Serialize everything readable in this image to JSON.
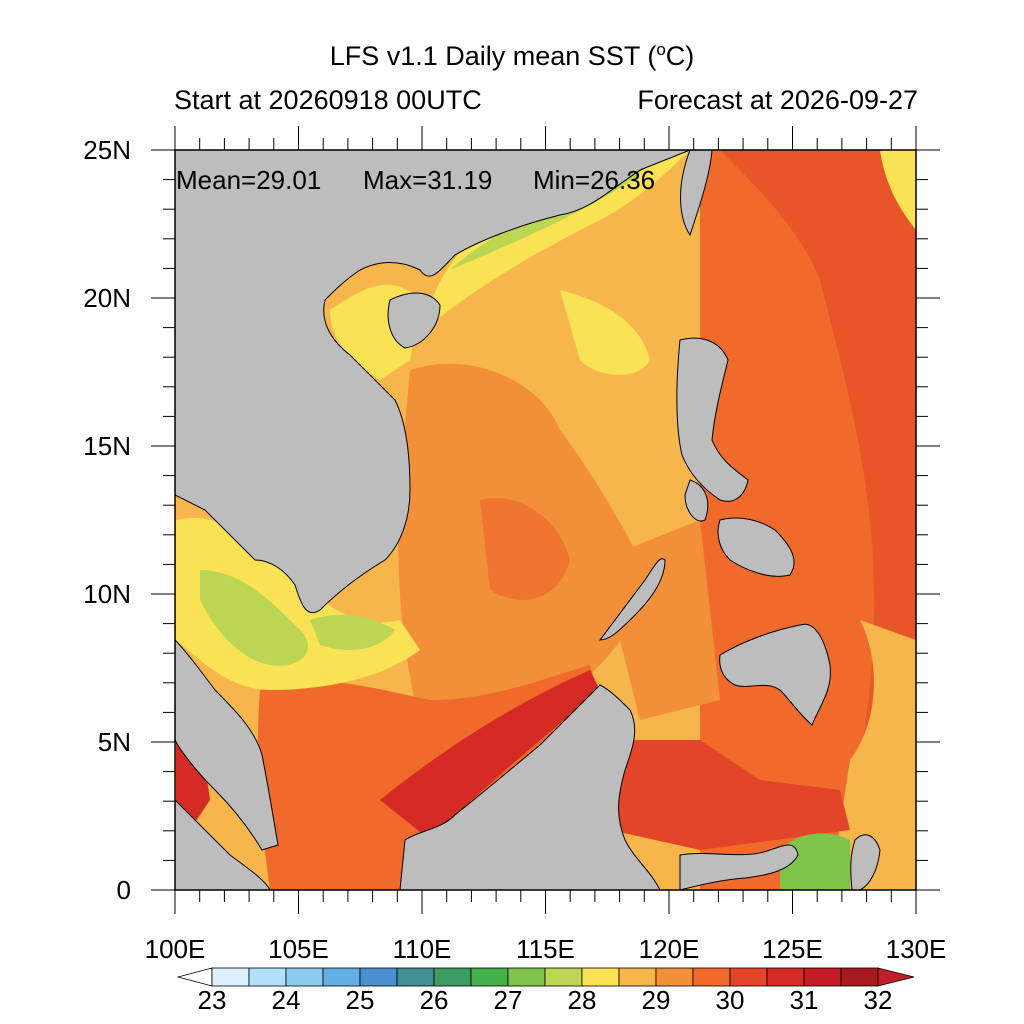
{
  "title_main": "LFS v1.1 Daily mean SST (",
  "title_sup": "o",
  "title_unit_tail": "C)",
  "subtitle_left": "Start at 20260918 00UTC",
  "subtitle_right": "Forecast at 2026-09-27",
  "stats": {
    "mean_label": "Mean=29.01",
    "max_label": "Max=31.19",
    "min_label": "Min=26.36"
  },
  "map": {
    "lon_range": [
      100,
      130
    ],
    "lat_range": [
      0,
      25
    ],
    "lon_ticks": [
      "100E",
      "105E",
      "110E",
      "115E",
      "120E",
      "125E",
      "130E"
    ],
    "lat_ticks": [
      "0",
      "5N",
      "10N",
      "15N",
      "20N",
      "25N"
    ],
    "land_color": "#bdbdbd"
  },
  "colorbar": {
    "labels": [
      "23",
      "24",
      "25",
      "26",
      "27",
      "28",
      "29",
      "30",
      "31",
      "32"
    ],
    "colors": [
      "#ffffff",
      "#dcf1fb",
      "#b2e0f6",
      "#8ccaf0",
      "#63aee3",
      "#4c8fd1",
      "#3f8f93",
      "#3d9a63",
      "#44b04a",
      "#7fc34b",
      "#bcd553",
      "#f9e355",
      "#f7b64c",
      "#f29039",
      "#ef6a2b",
      "#e24527",
      "#d62a25",
      "#c41c24",
      "#a61a1f",
      "#c01e28"
    ]
  }
}
